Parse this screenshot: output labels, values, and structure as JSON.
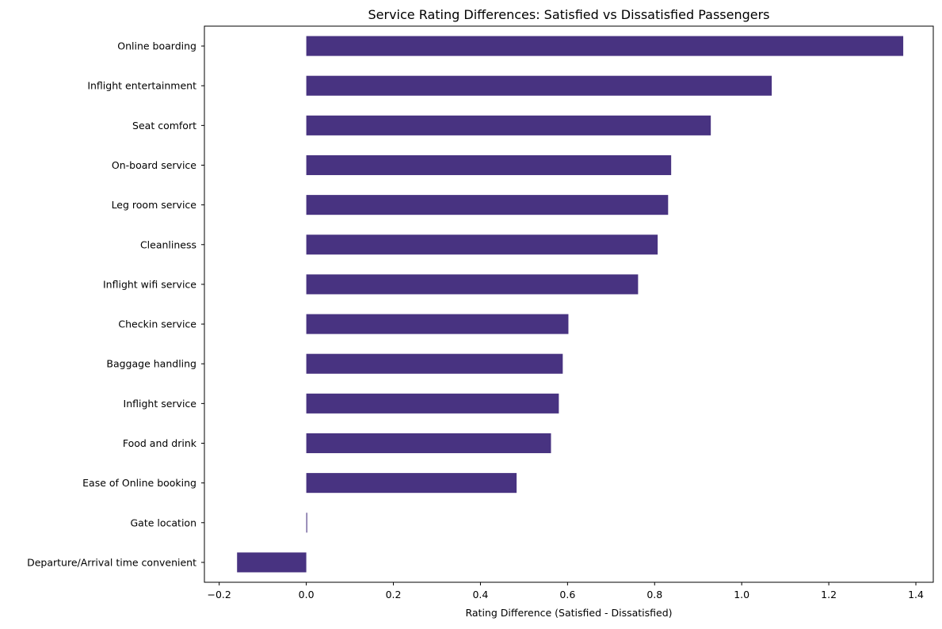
{
  "colors": {
    "bar": "#483381",
    "axis": "#000000",
    "background": "#ffffff"
  },
  "chart_data": {
    "type": "bar",
    "orientation": "horizontal",
    "title": "Service Rating Differences: Satisfied vs Dissatisfied Passengers",
    "xlabel": "Rating Difference (Satisfied - Dissatisfied)",
    "ylabel": "",
    "categories": [
      "Online boarding",
      "Inflight entertainment",
      "Seat comfort",
      "On-board service",
      "Leg room service",
      "Cleanliness",
      "Inflight wifi service",
      "Checkin service",
      "Baggage handling",
      "Inflight service",
      "Food and drink",
      "Ease of Online booking",
      "Gate location",
      "Departure/Arrival time convenient"
    ],
    "values": [
      1.371,
      1.069,
      0.929,
      0.838,
      0.831,
      0.807,
      0.762,
      0.602,
      0.589,
      0.58,
      0.562,
      0.483,
      0.002,
      -0.159
    ],
    "xlim": [
      -0.234,
      1.44
    ],
    "xticks": [
      -0.2,
      0.0,
      0.2,
      0.4,
      0.6,
      0.8,
      1.0,
      1.2,
      1.4
    ],
    "xtick_labels": [
      "−0.2",
      "0.0",
      "0.2",
      "0.4",
      "0.6",
      "0.8",
      "1.0",
      "1.2",
      "1.4"
    ],
    "grid": false,
    "legend": "none"
  }
}
